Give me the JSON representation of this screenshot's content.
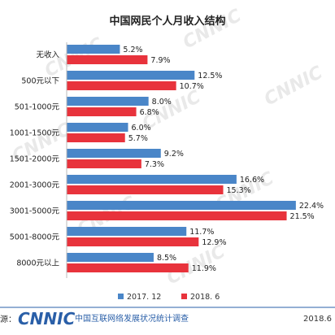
{
  "chart_data": {
    "type": "bar",
    "orientation": "horizontal",
    "title": "中国网民个人月收入结构",
    "categories": [
      "无收入",
      "500元以下",
      "501-1000元",
      "1001-1500元",
      "1501-2000元",
      "2001-3000元",
      "3001-5000元",
      "5001-8000元",
      "8000元以上"
    ],
    "series": [
      {
        "name": "2017. 12",
        "color": "#4a86c8",
        "values": [
          5.2,
          12.5,
          8.0,
          6.0,
          9.2,
          16.6,
          22.4,
          11.7,
          8.5
        ],
        "labels": [
          "5.2%",
          "12.5%",
          "8.0%",
          "6.0%",
          "9.2%",
          "16.6%",
          "22.4%",
          "11.7%",
          "8.5%"
        ]
      },
      {
        "name": "2018. 6",
        "color": "#e8333c",
        "values": [
          7.9,
          10.7,
          6.8,
          5.7,
          7.3,
          15.3,
          21.5,
          12.9,
          11.9
        ],
        "labels": [
          "7.9%",
          "10.7%",
          "6.8%",
          "5.7%",
          "7.3%",
          "15.3%",
          "21.5%",
          "12.9%",
          "11.9%"
        ]
      }
    ],
    "xlim": [
      0,
      24
    ],
    "grid": false,
    "legend_position": "bottom"
  },
  "footer": {
    "source_prefix": "源：",
    "brand": "CNNIC",
    "org": "中国互联网络发展状况统计调查",
    "date": "2018.6"
  },
  "watermark": "CNNIC"
}
